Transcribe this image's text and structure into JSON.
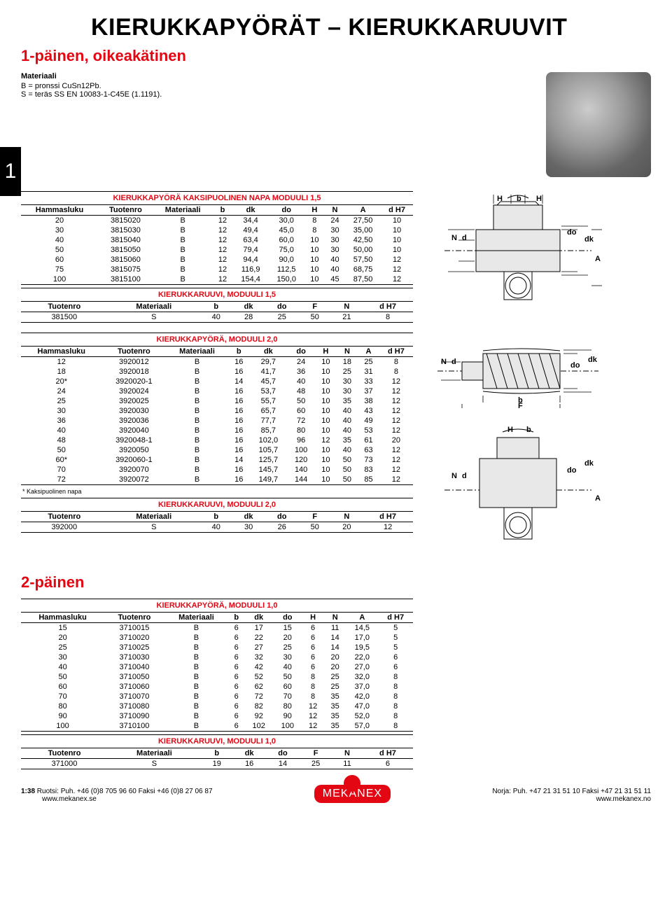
{
  "title": "KIERUKKAPYÖRÄT – KIERUKKARUUVIT",
  "sub1": "1-päinen, oikeakätinen",
  "sub2": "2-päinen",
  "tab_number": "1",
  "material_heading": "Materiaali",
  "material_b": "B = pronssi CuSn12Pb.",
  "material_s": "S = teräs SS EN 10083-1-C45E (1.1191).",
  "footnote_napa": "* Kaksipuolinen napa",
  "tables": {
    "t1": {
      "caption": "KIERUKKAPYÖRÄ KAKSIPUOLINEN NAPA MODUULI 1,5",
      "columns": [
        "Hammasluku",
        "Tuotenro",
        "Materiaali",
        "b",
        "dk",
        "do",
        "H",
        "N",
        "A",
        "d H7"
      ],
      "rows": [
        [
          "20",
          "3815020",
          "B",
          "12",
          "34,4",
          "30,0",
          "8",
          "24",
          "27,50",
          "10"
        ],
        [
          "30",
          "3815030",
          "B",
          "12",
          "49,4",
          "45,0",
          "8",
          "30",
          "35,00",
          "10"
        ],
        [
          "40",
          "3815040",
          "B",
          "12",
          "63,4",
          "60,0",
          "10",
          "30",
          "42,50",
          "10"
        ],
        [
          "50",
          "3815050",
          "B",
          "12",
          "79,4",
          "75,0",
          "10",
          "30",
          "50,00",
          "10"
        ],
        [
          "60",
          "3815060",
          "B",
          "12",
          "94,4",
          "90,0",
          "10",
          "40",
          "57,50",
          "12"
        ],
        [
          "75",
          "3815075",
          "B",
          "12",
          "116,9",
          "112,5",
          "10",
          "40",
          "68,75",
          "12"
        ],
        [
          "100",
          "3815100",
          "B",
          "12",
          "154,4",
          "150,0",
          "10",
          "45",
          "87,50",
          "12"
        ]
      ]
    },
    "t1s": {
      "caption": "KIERUKKARUUVI, MODUULI 1,5",
      "columns": [
        "Tuotenro",
        "Materiaali",
        "b",
        "dk",
        "do",
        "F",
        "N",
        "d H7"
      ],
      "rows": [
        [
          "381500",
          "S",
          "40",
          "28",
          "25",
          "50",
          "21",
          "8"
        ]
      ]
    },
    "t2": {
      "caption": "KIERUKKAPYÖRÄ, MODUULI 2,0",
      "columns": [
        "Hammasluku",
        "Tuotenro",
        "Materiaali",
        "b",
        "dk",
        "do",
        "H",
        "N",
        "A",
        "d H7"
      ],
      "rows": [
        [
          "12",
          "3920012",
          "B",
          "16",
          "29,7",
          "24",
          "10",
          "18",
          "25",
          "8"
        ],
        [
          "18",
          "3920018",
          "B",
          "16",
          "41,7",
          "36",
          "10",
          "25",
          "31",
          "8"
        ],
        [
          "20*",
          "3920020-1",
          "B",
          "14",
          "45,7",
          "40",
          "10",
          "30",
          "33",
          "12"
        ],
        [
          "24",
          "3920024",
          "B",
          "16",
          "53,7",
          "48",
          "10",
          "30",
          "37",
          "12"
        ],
        [
          "25",
          "3920025",
          "B",
          "16",
          "55,7",
          "50",
          "10",
          "35",
          "38",
          "12"
        ],
        [
          "30",
          "3920030",
          "B",
          "16",
          "65,7",
          "60",
          "10",
          "40",
          "43",
          "12"
        ],
        [
          "36",
          "3920036",
          "B",
          "16",
          "77,7",
          "72",
          "10",
          "40",
          "49",
          "12"
        ],
        [
          "40",
          "3920040",
          "B",
          "16",
          "85,7",
          "80",
          "10",
          "40",
          "53",
          "12"
        ],
        [
          "48",
          "3920048-1",
          "B",
          "16",
          "102,0",
          "96",
          "12",
          "35",
          "61",
          "20"
        ],
        [
          "50",
          "3920050",
          "B",
          "16",
          "105,7",
          "100",
          "10",
          "40",
          "63",
          "12"
        ],
        [
          "60*",
          "3920060-1",
          "B",
          "14",
          "125,7",
          "120",
          "10",
          "50",
          "73",
          "12"
        ],
        [
          "70",
          "3920070",
          "B",
          "16",
          "145,7",
          "140",
          "10",
          "50",
          "83",
          "12"
        ],
        [
          "72",
          "3920072",
          "B",
          "16",
          "149,7",
          "144",
          "10",
          "50",
          "85",
          "12"
        ]
      ]
    },
    "t2s": {
      "caption": "KIERUKKARUUVI, MODUULI 2,0",
      "columns": [
        "Tuotenro",
        "Materiaali",
        "b",
        "dk",
        "do",
        "F",
        "N",
        "d H7"
      ],
      "rows": [
        [
          "392000",
          "S",
          "40",
          "30",
          "26",
          "50",
          "20",
          "12"
        ]
      ]
    },
    "t3": {
      "caption": "KIERUKKAPYÖRÄ, MODUULI 1,0",
      "columns": [
        "Hammasluku",
        "Tuotenro",
        "Materiaali",
        "b",
        "dk",
        "do",
        "H",
        "N",
        "A",
        "d H7"
      ],
      "rows": [
        [
          "15",
          "3710015",
          "B",
          "6",
          "17",
          "15",
          "6",
          "11",
          "14,5",
          "5"
        ],
        [
          "20",
          "3710020",
          "B",
          "6",
          "22",
          "20",
          "6",
          "14",
          "17,0",
          "5"
        ],
        [
          "25",
          "3710025",
          "B",
          "6",
          "27",
          "25",
          "6",
          "14",
          "19,5",
          "5"
        ],
        [
          "30",
          "3710030",
          "B",
          "6",
          "32",
          "30",
          "6",
          "20",
          "22,0",
          "6"
        ],
        [
          "40",
          "3710040",
          "B",
          "6",
          "42",
          "40",
          "6",
          "20",
          "27,0",
          "6"
        ],
        [
          "50",
          "3710050",
          "B",
          "6",
          "52",
          "50",
          "8",
          "25",
          "32,0",
          "8"
        ],
        [
          "60",
          "3710060",
          "B",
          "6",
          "62",
          "60",
          "8",
          "25",
          "37,0",
          "8"
        ],
        [
          "70",
          "3710070",
          "B",
          "6",
          "72",
          "70",
          "8",
          "35",
          "42,0",
          "8"
        ],
        [
          "80",
          "3710080",
          "B",
          "6",
          "82",
          "80",
          "12",
          "35",
          "47,0",
          "8"
        ],
        [
          "90",
          "3710090",
          "B",
          "6",
          "92",
          "90",
          "12",
          "35",
          "52,0",
          "8"
        ],
        [
          "100",
          "3710100",
          "B",
          "6",
          "102",
          "100",
          "12",
          "35",
          "57,0",
          "8"
        ]
      ]
    },
    "t3s": {
      "caption": "KIERUKKARUUVI, MODUULI 1,0",
      "columns": [
        "Tuotenro",
        "Materiaali",
        "b",
        "dk",
        "do",
        "F",
        "N",
        "d H7"
      ],
      "rows": [
        [
          "371000",
          "S",
          "19",
          "16",
          "14",
          "25",
          "11",
          "6"
        ]
      ]
    }
  },
  "diagrams": {
    "labels_gear": {
      "H": "H",
      "b": "b",
      "N": "N",
      "d": "d",
      "do": "do",
      "dk": "dk",
      "A": "A"
    },
    "labels_worm": {
      "N": "N",
      "d": "d",
      "do": "do",
      "dk": "dk",
      "b": "b",
      "F": "F",
      "H": "H"
    }
  },
  "footer": {
    "page": "1:38",
    "left1": "Ruotsi: Puh. +46 (0)8 705 96 60 Faksi +46 (0)8 27 06 87",
    "left2": "www.mekanex.se",
    "right1": "Norja: Puh. +47 21 31 51 10 Faksi +47 21 31 51 11",
    "right2": "www.mekanex.no",
    "logo": "MEKANEX"
  },
  "colors": {
    "accent": "#e30613",
    "text": "#000000",
    "border": "#000000"
  }
}
